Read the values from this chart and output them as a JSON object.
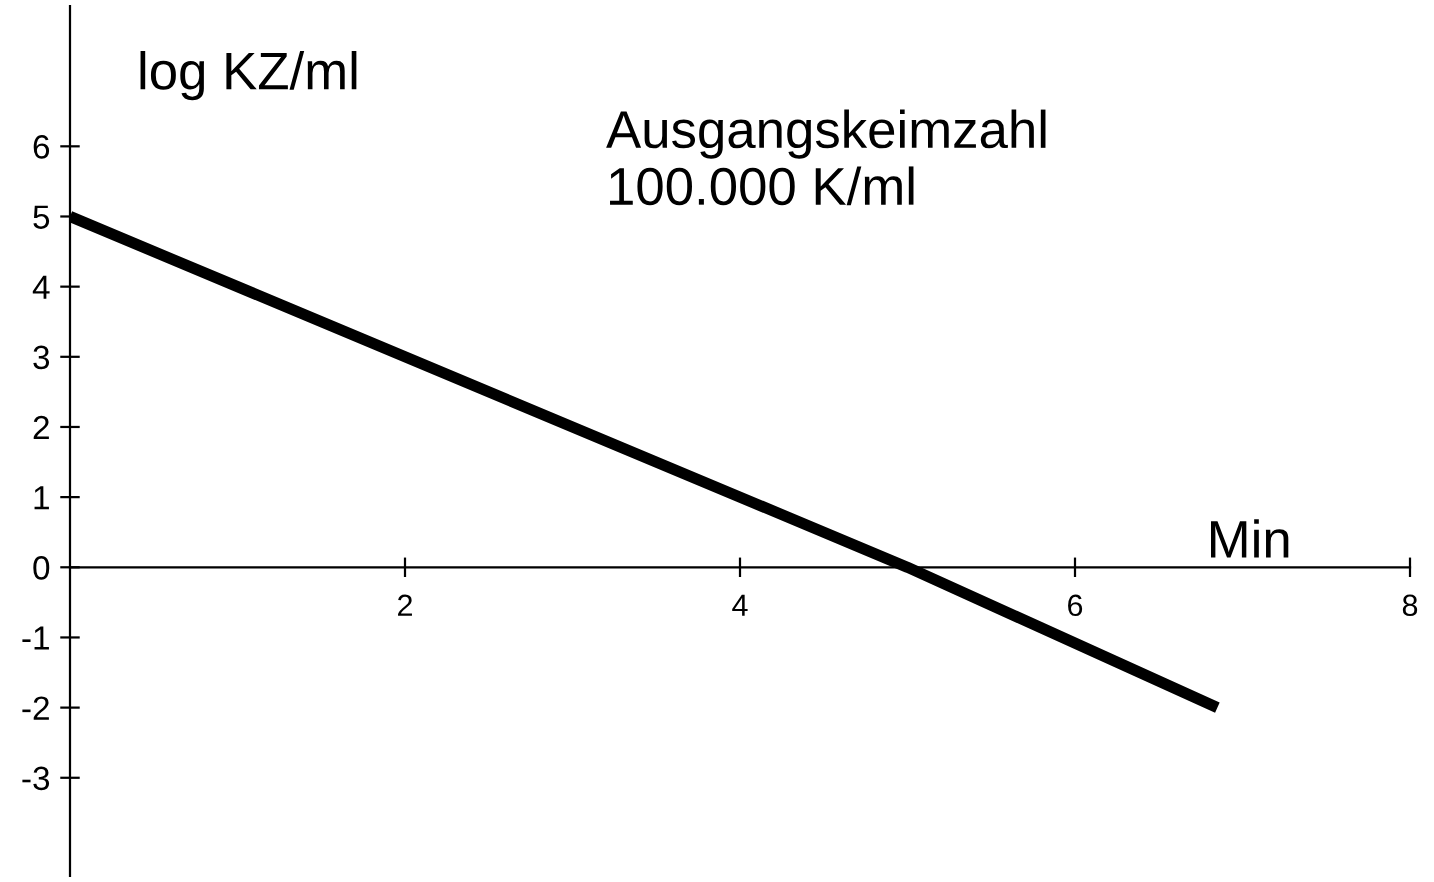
{
  "chart_data": {
    "type": "line",
    "xlabel": "Min",
    "ylabel": "log KZ/ml",
    "annotations": [
      "Ausgangskeimzahl\n100.000 K/ml"
    ],
    "x": [
      0,
      5,
      6.85
    ],
    "series": [
      {
        "color": "#000000",
        "values": [
          5,
          0,
          -2.0
        ]
      }
    ],
    "xlim": [
      0,
      8
    ],
    "ylim": [
      -4.4,
      8
    ],
    "xticks": [
      2,
      4,
      6,
      8
    ],
    "yticks": [
      -3,
      -2,
      -1,
      0,
      1,
      2,
      3,
      4,
      5,
      6
    ],
    "grid": false,
    "legend": false,
    "marker": "none",
    "line_style": "solid"
  }
}
